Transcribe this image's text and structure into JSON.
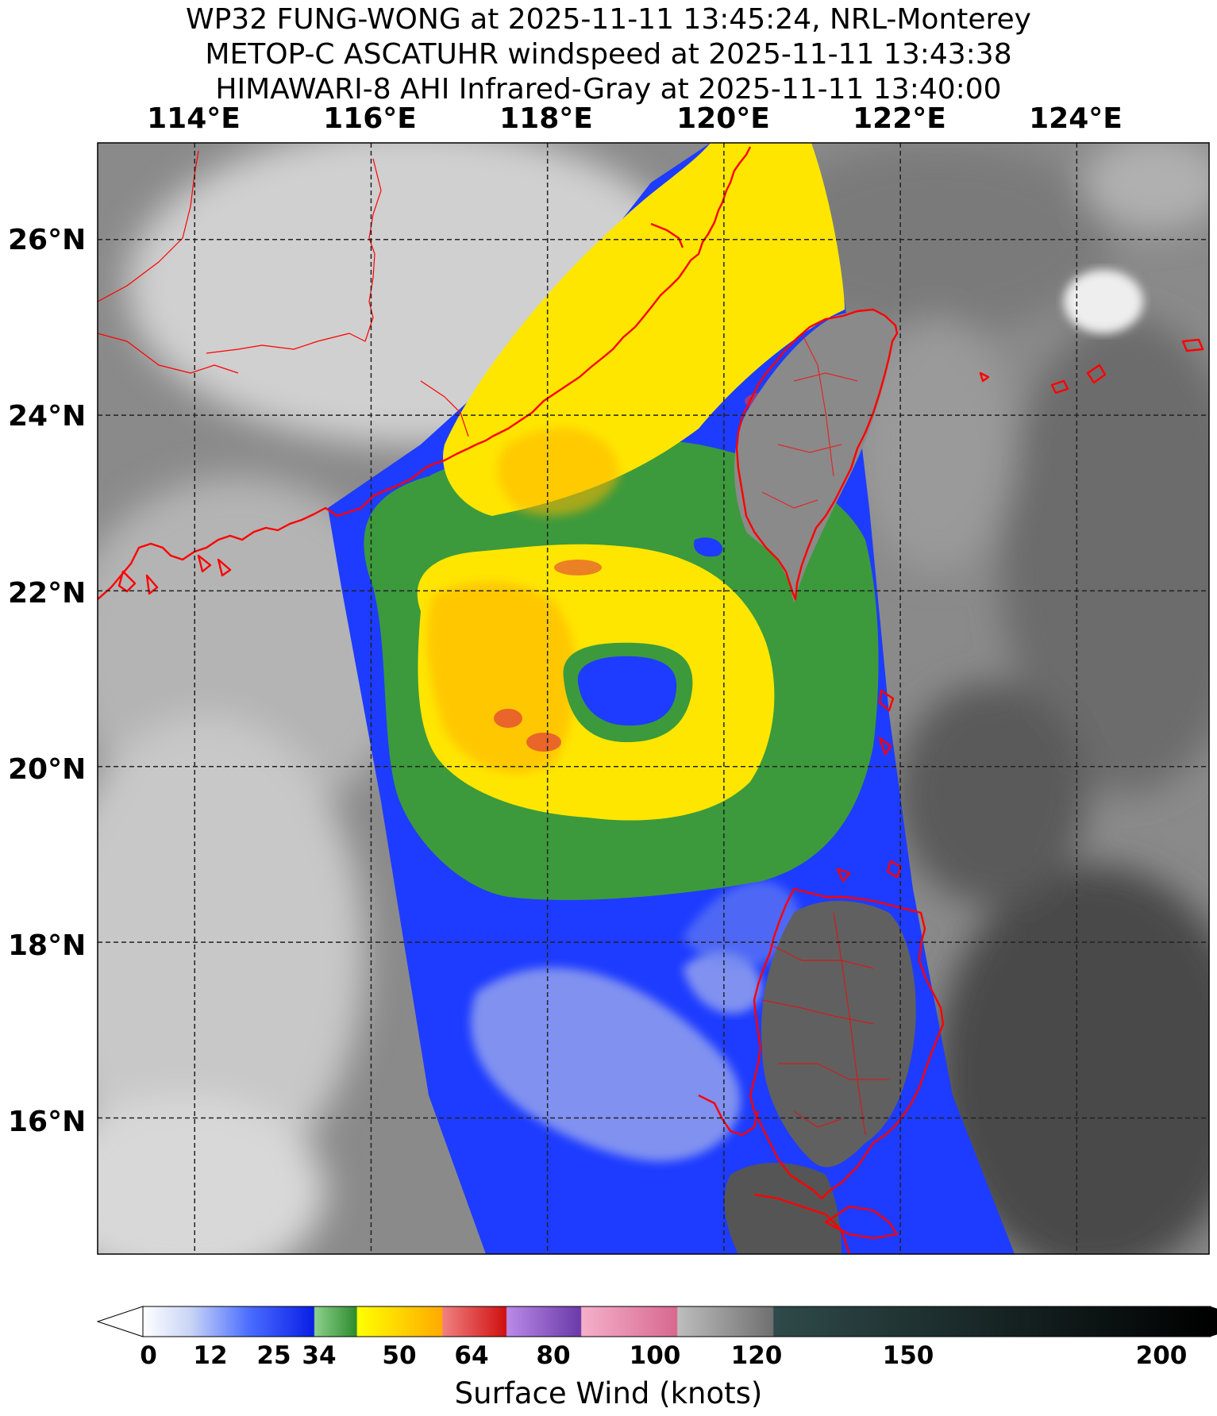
{
  "title": {
    "line1": "WP32 FUNG-WONG at 2025-11-11 13:45:24, NRL-Monterey",
    "line2": "METOP-C ASCATUHR windspeed at 2025-11-11 13:43:38",
    "line3": "HIMAWARI-8 AHI Infrared-Gray at 2025-11-11 13:40:00"
  },
  "axes": {
    "lon_labels": [
      "114°E",
      "116°E",
      "118°E",
      "120°E",
      "122°E",
      "124°E"
    ],
    "lat_labels": [
      "26°N",
      "24°N",
      "22°N",
      "20°N",
      "18°N",
      "16°N"
    ],
    "lon_range": [
      112.9,
      125.5
    ],
    "lat_range": [
      14.45,
      27.1
    ],
    "gridlines": "dashed"
  },
  "colorbar": {
    "title": "Surface Wind (knots)",
    "ticks": [
      "0",
      "12",
      "25",
      "34",
      "50",
      "64",
      "80",
      "100",
      "120",
      "150",
      "200"
    ],
    "extend": "both"
  },
  "colors": {
    "background": "#ffffff",
    "coastline": "#ff0000",
    "grid": "#222222",
    "wind_blue": "#1e3cff",
    "wind_green": "#3c9a3c",
    "wind_yellow": "#ffe600",
    "wind_orange": "#ffb400",
    "wind_red": "#e03c3c"
  }
}
